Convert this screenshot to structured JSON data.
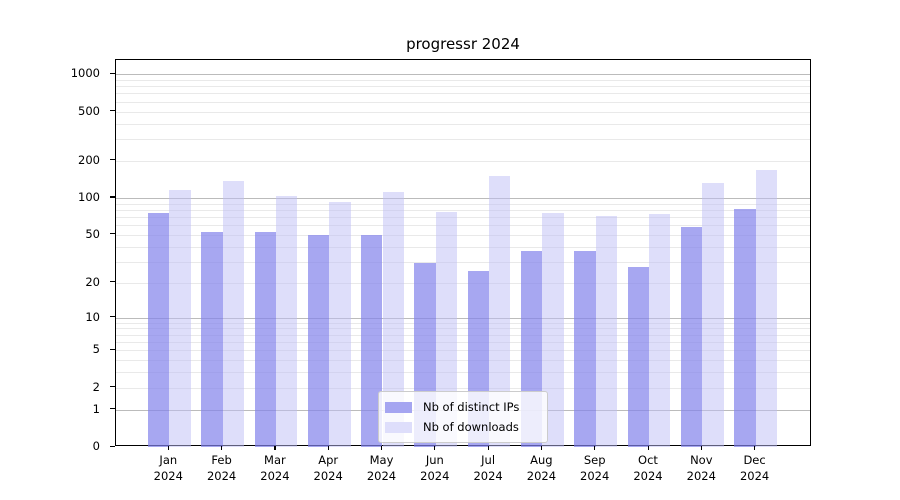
{
  "title": "progressr 2024",
  "chart_data": {
    "type": "bar",
    "title": "progressr 2024",
    "categories": [
      "Jan",
      "Feb",
      "Mar",
      "Apr",
      "May",
      "Jun",
      "Jul",
      "Aug",
      "Sep",
      "Oct",
      "Nov",
      "Dec"
    ],
    "category_year": "2024",
    "series": [
      {
        "name": "Nb of distinct IPs",
        "color": "#a5a5f1",
        "fill": "rgba(130,130,235,0.7)",
        "values": [
          76,
          53,
          53,
          50,
          50,
          29,
          25,
          37,
          37,
          27,
          58,
          82
        ]
      },
      {
        "name": "Nb of downloads",
        "color": "#dedefb",
        "fill": "rgba(190,190,245,0.5)",
        "values": [
          115,
          137,
          104,
          93,
          112,
          77,
          150,
          76,
          71,
          74,
          133,
          170
        ]
      }
    ],
    "yscale": "log1p",
    "ylim": [
      0,
      1300
    ],
    "y_tick_labels": [
      "1000",
      "500",
      "200",
      "100",
      "50",
      "20",
      "10",
      "5",
      "2",
      "1",
      "0"
    ],
    "y_tick_values": [
      1000,
      500,
      200,
      100,
      50,
      20,
      10,
      5,
      2,
      1,
      0
    ],
    "grid": {
      "major_values": [
        1,
        10,
        100,
        1000
      ],
      "minor_values": [
        2,
        3,
        4,
        5,
        6,
        7,
        8,
        9,
        20,
        30,
        40,
        50,
        60,
        70,
        80,
        90,
        200,
        300,
        400,
        500,
        600,
        700,
        800,
        900
      ],
      "major_color": "#bbbbbb",
      "minor_color": "#e9e9e9"
    },
    "legend_position": "lower-center-inside"
  }
}
